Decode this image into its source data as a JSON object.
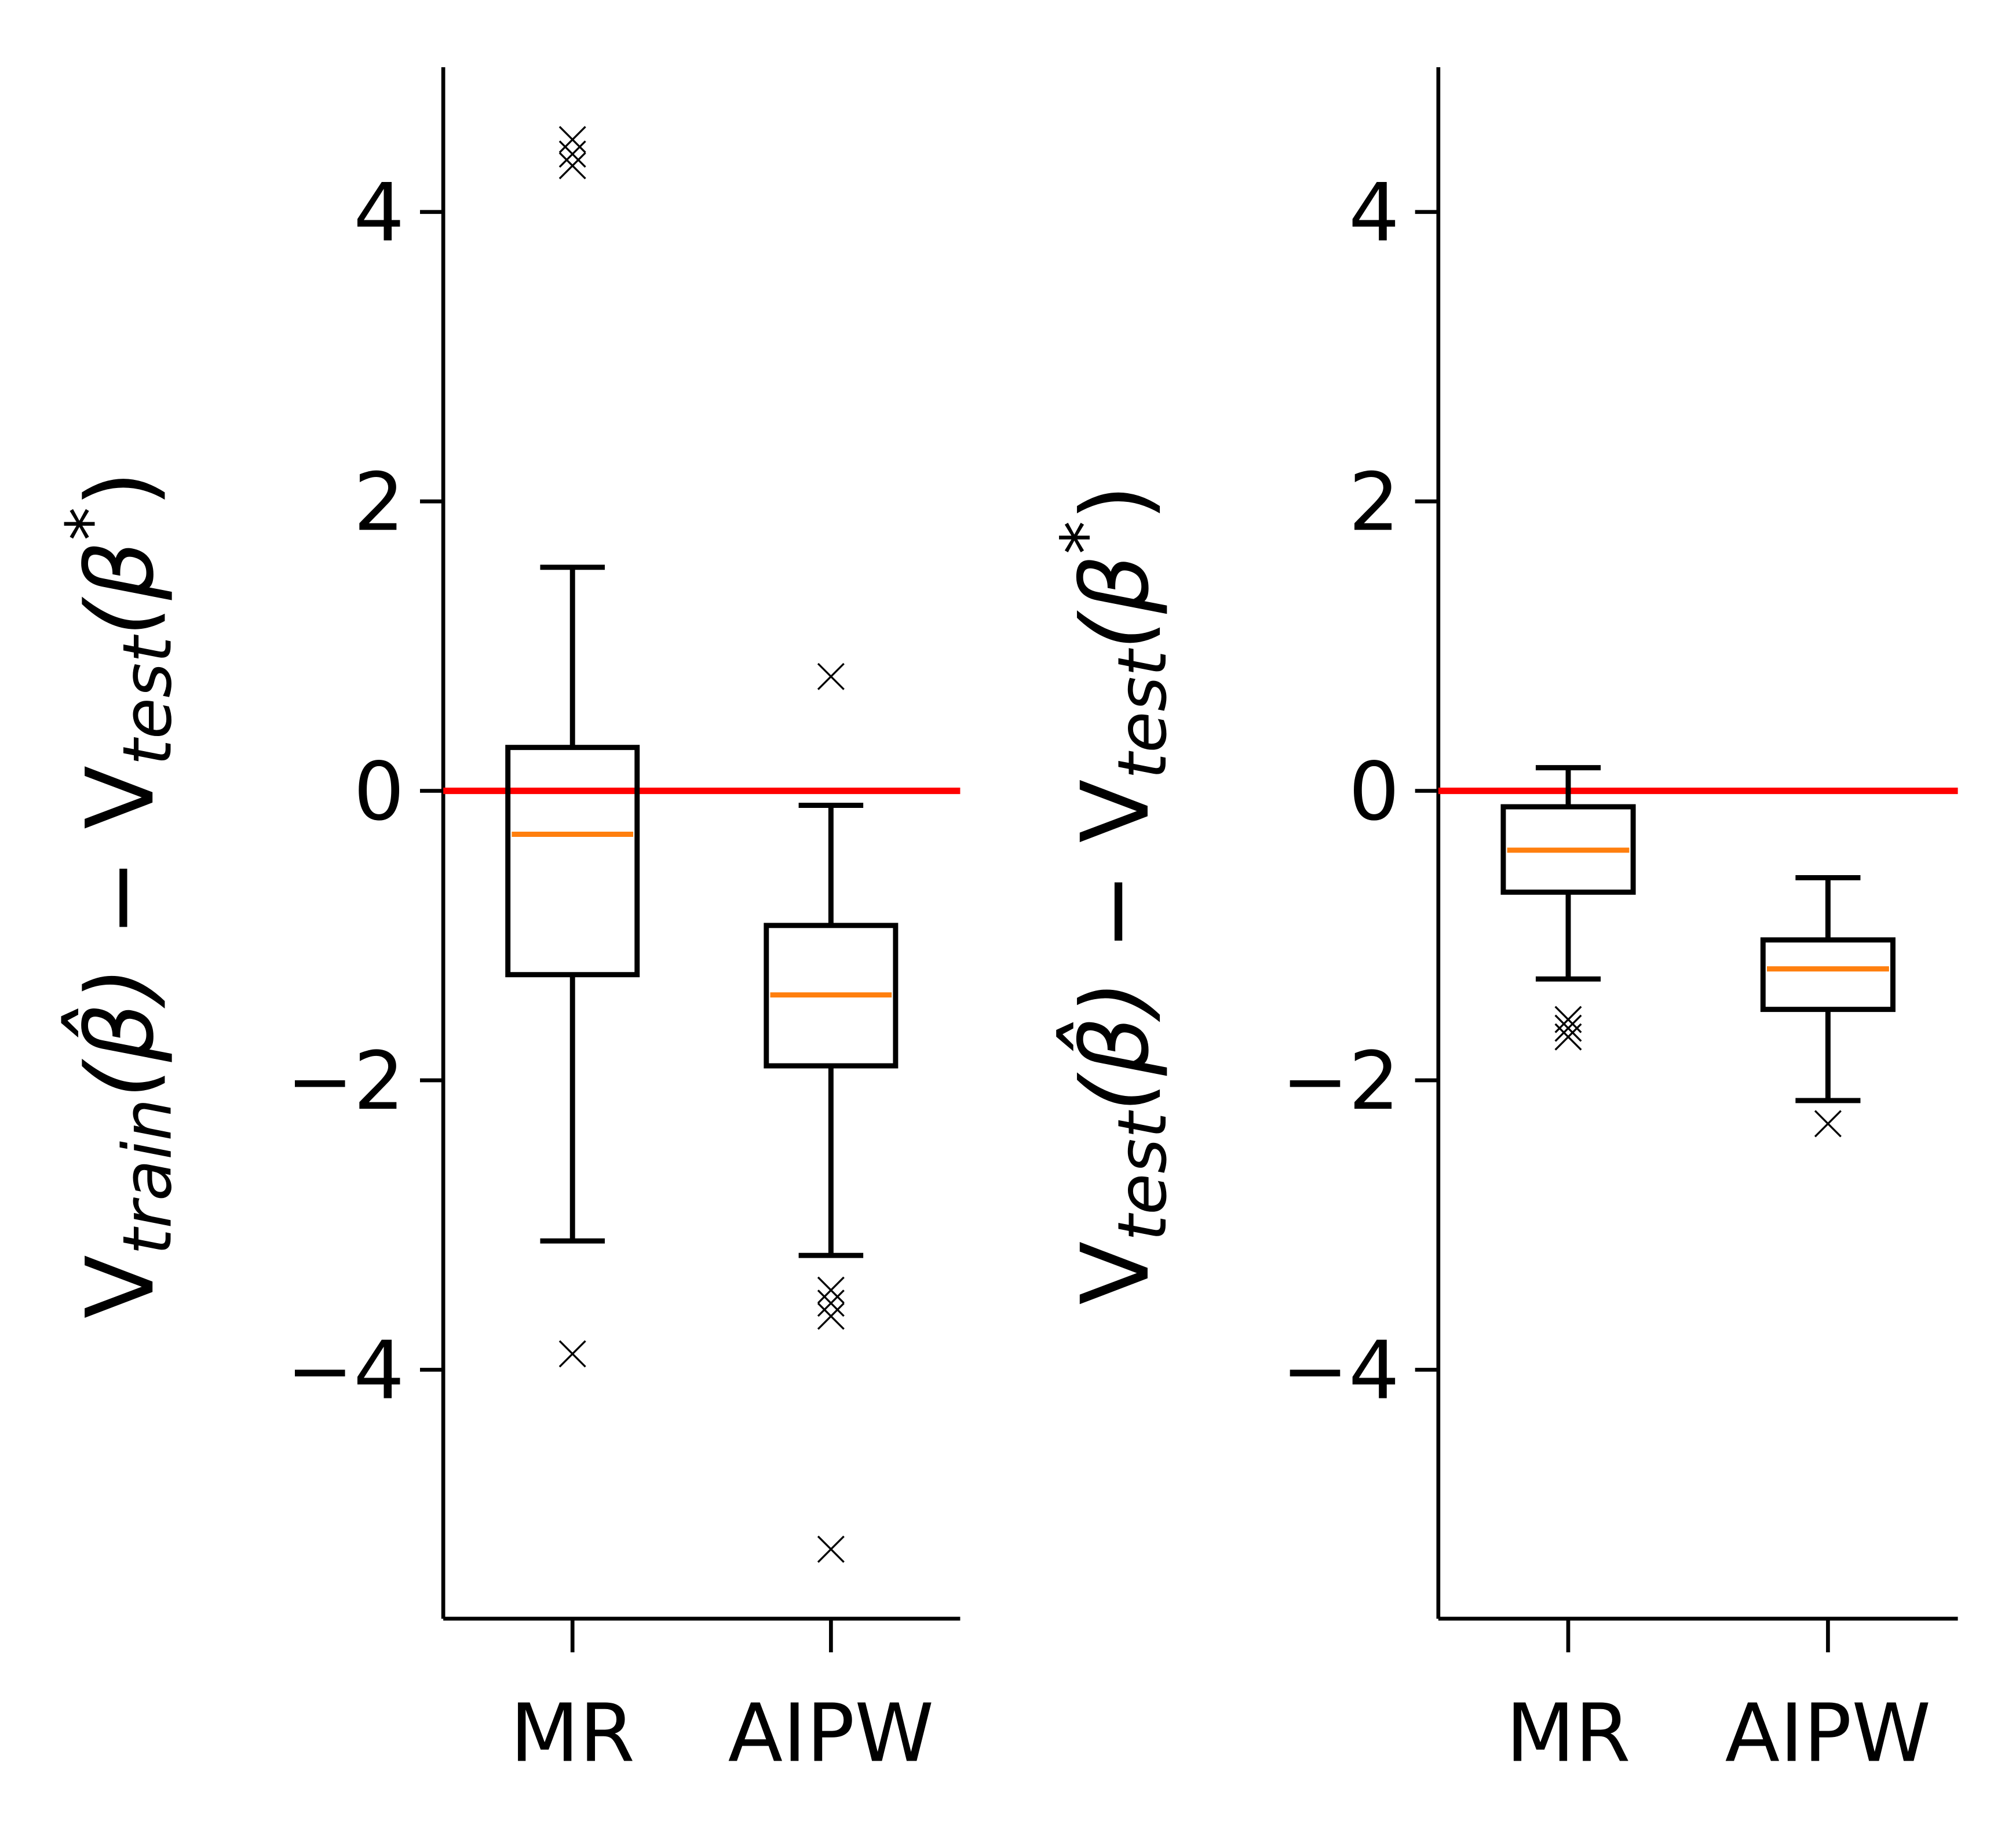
{
  "chart_data": [
    {
      "type": "box",
      "categories": [
        "MR",
        "AIPW"
      ],
      "ylabel": [
        "V",
        "train",
        "(β̂)",
        " − V",
        "test",
        "(β",
        "*",
        ")"
      ],
      "ylim": [
        -5.72,
        5.0
      ],
      "yticks": [
        {
          "value": -4,
          "label": "−4"
        },
        {
          "value": -2,
          "label": "−2"
        },
        0,
        2,
        4
      ],
      "xlim": [
        0.5,
        2.5
      ],
      "box_color": "#000000",
      "median_color": "#ff7f0e",
      "hline": 0,
      "hline_color": "#ff0000",
      "boxes": [
        {
          "whislo": -3.11,
          "q1": -1.27,
          "med": -0.3,
          "q3": 0.3,
          "whishi": 1.545,
          "fliers": [
            4.5,
            4.4,
            4.32,
            -3.89
          ]
        },
        {
          "whislo": -3.21,
          "q1": -1.9,
          "med": -1.41,
          "q3": -0.93,
          "whishi": -0.1,
          "fliers": [
            0.79,
            -3.45,
            -3.54,
            -3.63,
            -5.24
          ]
        }
      ]
    },
    {
      "type": "box",
      "categories": [
        "MR",
        "AIPW"
      ],
      "ylabel": [
        "V",
        "test",
        "(β̂)",
        " − V",
        "test",
        "(β",
        "*",
        ")"
      ],
      "ylim": [
        -5.72,
        5.0
      ],
      "yticks": [
        {
          "value": -4,
          "label": "−4"
        },
        {
          "value": -2,
          "label": "−2"
        },
        0,
        2,
        4
      ],
      "xlim": [
        0.5,
        2.5
      ],
      "box_color": "#000000",
      "median_color": "#ff7f0e",
      "hline": 0,
      "hline_color": "#ff0000",
      "boxes": [
        {
          "whislo": -1.3,
          "q1": -0.7,
          "med": -0.41,
          "q3": -0.11,
          "whishi": 0.16,
          "fliers": [
            -1.58,
            -1.64,
            -1.7
          ]
        },
        {
          "whislo": -2.14,
          "q1": -1.51,
          "med": -1.23,
          "q3": -1.03,
          "whishi": -0.6,
          "fliers": [
            -2.3
          ]
        }
      ]
    }
  ]
}
